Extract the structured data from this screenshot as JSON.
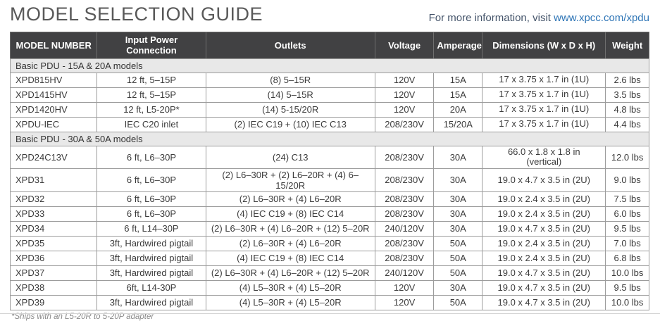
{
  "page": {
    "title": "MODEL SELECTION GUIDE",
    "info_prefix": "For more information, visit ",
    "info_link": "www.xpcc.com/xpdu",
    "footnote": "*Ships with an L5-20R to 5-20P adapter"
  },
  "colors": {
    "header_bg": "#414143",
    "header_text": "#ffffff",
    "section_bg": "#e8e8e8",
    "border": "#9c9c9c",
    "title_text": "#595959",
    "info_text": "#44546a",
    "link": "#2e75b6",
    "footnote_text": "#8a8a8a"
  },
  "table": {
    "columns": [
      "MODEL NUMBER",
      "Input Power Connection",
      "Outlets",
      "Voltage",
      "Amperage",
      "Dimensions (W x D x H)",
      "Weight"
    ],
    "sections": [
      {
        "label": "Basic PDU - 15A & 20A models",
        "rows": [
          [
            "XPD815HV",
            "12 ft, 5–15P",
            "(8) 5–15R",
            "120V",
            "15A",
            "17 x 3.75 x 1.7 in (1U)",
            "2.6 lbs"
          ],
          [
            "XPD1415HV",
            "12 ft, 5–15P",
            "(14) 5–15R",
            "120V",
            "15A",
            "17 x 3.75 x 1.7 in (1U)",
            "3.5 lbs"
          ],
          [
            "XPD1420HV",
            "12 ft, L5-20P*",
            "(14) 5-15/20R",
            "120V",
            "20A",
            "17 x 3.75 x 1.7 in (1U)",
            "4.8 lbs"
          ],
          [
            "XPDU-IEC",
            "IEC C20 inlet",
            "(2) IEC C19 + (10) IEC C13",
            "208/230V",
            "15/20A",
            "17 x 3.75 x 1.7 in (1U)",
            "4.4 lbs"
          ]
        ]
      },
      {
        "label": "Basic PDU - 30A & 50A models",
        "rows": [
          [
            "XPD24C13V",
            "6 ft, L6–30P",
            "(24) C13",
            "208/230V",
            "30A",
            "66.0 x 1.8 x 1.8 in\n(vertical)",
            "12.0 lbs"
          ],
          [
            "XPD31",
            "6 ft, L6–30P",
            "(2) L6–30R + (2) L6–20R + (4) 6–15/20R",
            "208/230V",
            "30A",
            "19.0 x 4.7 x 3.5 in (2U)",
            "9.0 lbs"
          ],
          [
            "XPD32",
            "6 ft, L6–30P",
            "(2) L6–30R + (4) L6–20R",
            "208/230V",
            "30A",
            "19.0 x 2.4 x 3.5 in (2U)",
            "7.5 lbs"
          ],
          [
            "XPD33",
            "6 ft, L6–30P",
            "(4) IEC C19 + (8) IEC C14",
            "208/230V",
            "30A",
            "19.0 x 2.4 x 3.5 in (2U)",
            "6.0 lbs"
          ],
          [
            "XPD34",
            "6 ft, L14–30P",
            "(2) L6–30R + (4) L6–20R + (12) 5–20R",
            "240/120V",
            "30A",
            "19.0 x 4.7 x 3.5 in (2U)",
            "9.5 lbs"
          ],
          [
            "XPD35",
            "3ft, Hardwired pigtail",
            "(2) L6–30R + (4) L6–20R",
            "208/230V",
            "50A",
            "19.0 x 2.4 x 3.5 in (2U)",
            "7.0 lbs"
          ],
          [
            "XPD36",
            "3ft, Hardwired pigtail",
            "(4) IEC C19 + (8) IEC C14",
            "208/230V",
            "50A",
            "19.0 x 2.4 x 3.5 in (2U)",
            "6.8 lbs"
          ],
          [
            "XPD37",
            "3ft, Hardwired pigtail",
            "(2) L6–30R + (4) L6–20R + (12) 5–20R",
            "240/120V",
            "50A",
            "19.0 x 4.7 x 3.5 in (2U)",
            "10.0 lbs"
          ],
          [
            "XPD38",
            "6ft, L14-30P",
            "(4) L5–30R + (4) L5–20R",
            "120V",
            "30A",
            "19.0 x 4.7 x 3.5 in (2U)",
            "9.5 lbs"
          ],
          [
            "XPD39",
            "3ft, Hardwired pigtail",
            "(4) L5–30R + (4) L5–20R",
            "120V",
            "50A",
            "19.0 x 4.7 x 3.5 in (2U)",
            "10.0 lbs"
          ]
        ]
      }
    ]
  }
}
